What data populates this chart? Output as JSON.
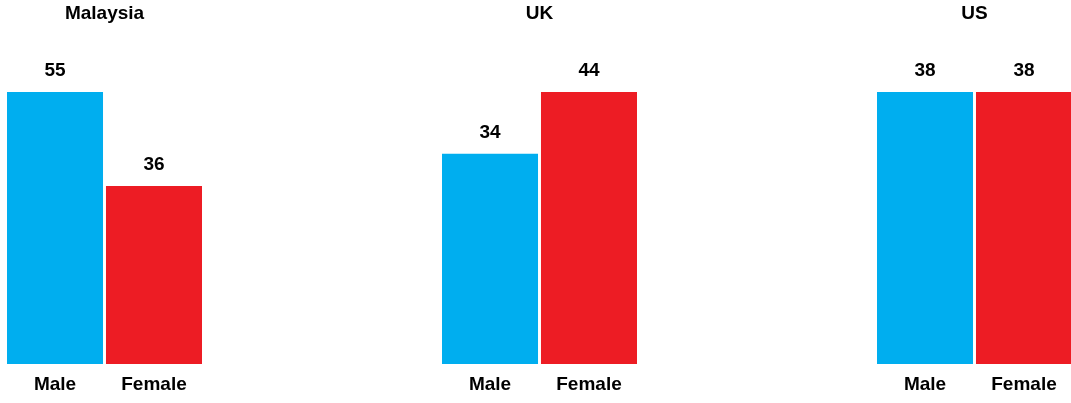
{
  "chart_data": [
    {
      "type": "bar",
      "title": "Malaysia",
      "categories": [
        "Male",
        "Female"
      ],
      "values": [
        55,
        36
      ],
      "colors": [
        "#00aeef",
        "#ed1c24"
      ],
      "data_labels": true
    },
    {
      "type": "bar",
      "title": "UK",
      "categories": [
        "Male",
        "Female"
      ],
      "values": [
        34,
        44
      ],
      "colors": [
        "#00aeef",
        "#ed1c24"
      ],
      "data_labels": true
    },
    {
      "type": "bar",
      "title": "US",
      "categories": [
        "Male",
        "Female"
      ],
      "values": [
        38,
        38
      ],
      "colors": [
        "#00aeef",
        "#ed1c24"
      ],
      "data_labels": true
    }
  ]
}
